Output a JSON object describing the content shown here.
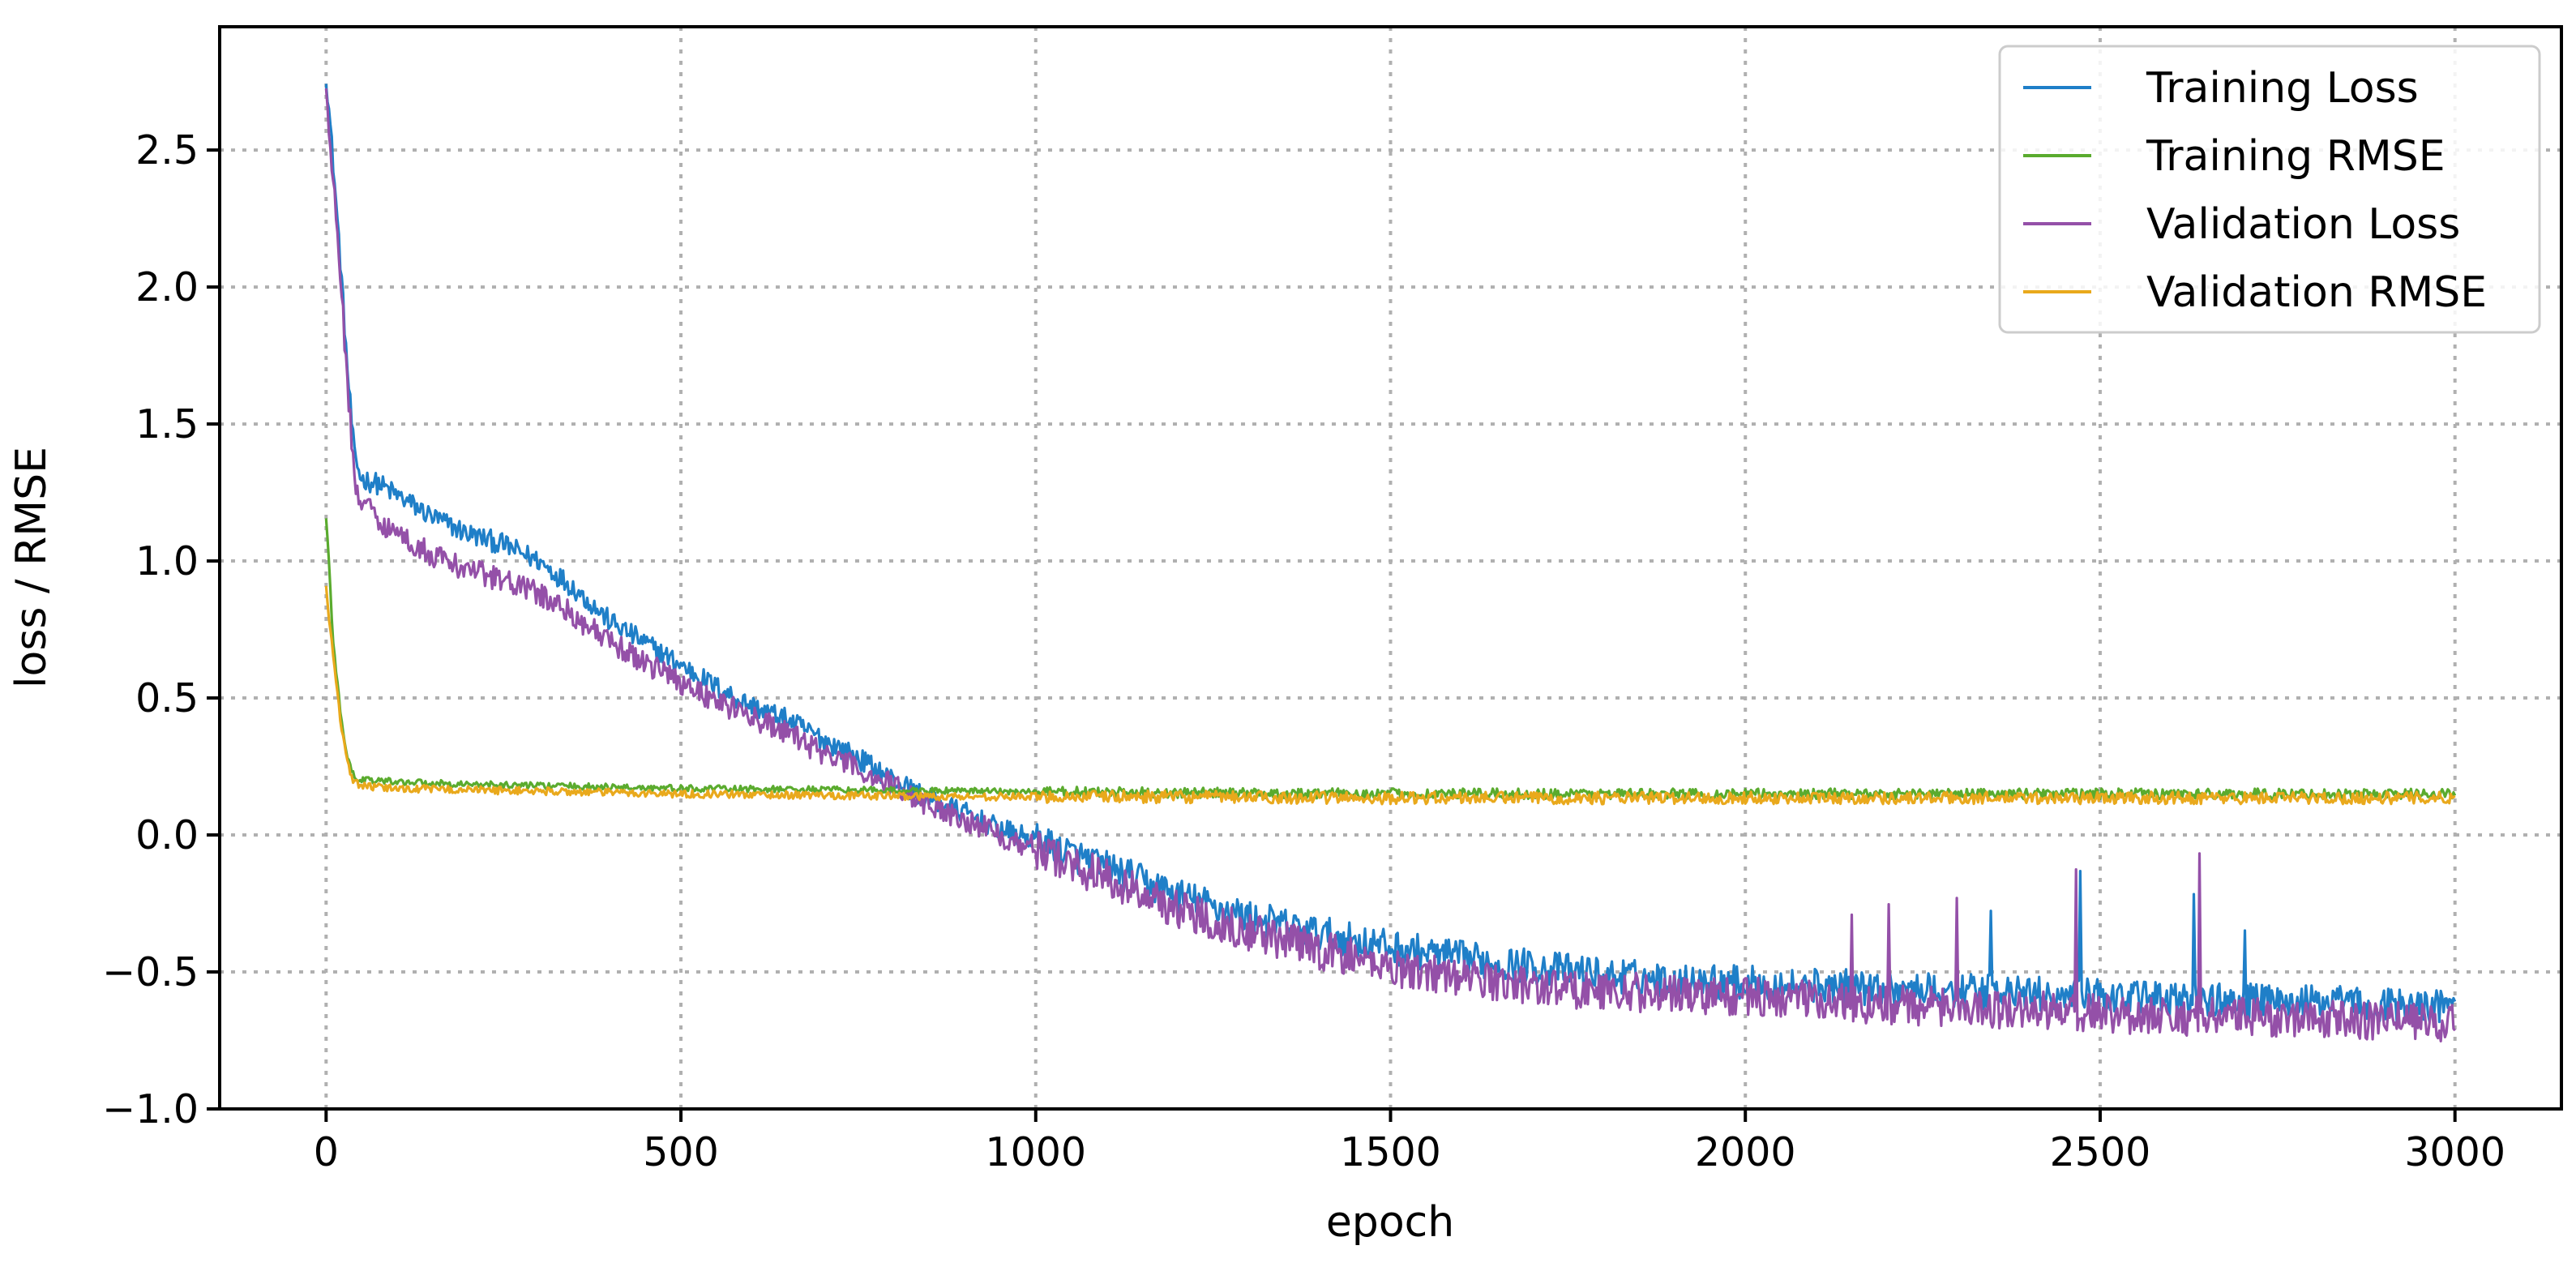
{
  "chart_data": {
    "type": "line",
    "title": "",
    "xlabel": "epoch",
    "ylabel": "loss / RMSE",
    "xlim": [
      -150,
      3150
    ],
    "ylim": [
      -1.0,
      2.95
    ],
    "xticks": [
      0,
      500,
      1000,
      1500,
      2000,
      2500,
      3000
    ],
    "xtick_labels": [
      "0",
      "500",
      "1000",
      "1500",
      "2000",
      "2500",
      "3000"
    ],
    "yticks": [
      -1.0,
      -0.5,
      0.0,
      0.5,
      1.0,
      1.5,
      2.0,
      2.5
    ],
    "ytick_labels": [
      "−1.0",
      "−0.5",
      "0.0",
      "0.5",
      "1.0",
      "1.5",
      "2.0",
      "2.5"
    ],
    "grid": true,
    "legend_position": "top-right",
    "series": [
      {
        "name": "Training Loss",
        "color": "#1f7fc8",
        "x": [
          0,
          10,
          20,
          30,
          40,
          50,
          75,
          100,
          150,
          200,
          250,
          300,
          350,
          400,
          450,
          500,
          550,
          600,
          650,
          700,
          750,
          800,
          850,
          900,
          950,
          1000,
          1100,
          1200,
          1300,
          1400,
          1500,
          1600,
          1700,
          1800,
          1900,
          2000,
          2200,
          2400,
          2600,
          2800,
          3000
        ],
        "y": [
          2.78,
          2.45,
          2.1,
          1.7,
          1.38,
          1.3,
          1.28,
          1.24,
          1.16,
          1.1,
          1.06,
          1.0,
          0.9,
          0.78,
          0.7,
          0.62,
          0.54,
          0.47,
          0.42,
          0.35,
          0.28,
          0.2,
          0.13,
          0.08,
          0.02,
          -0.02,
          -0.12,
          -0.22,
          -0.3,
          -0.36,
          -0.41,
          -0.45,
          -0.48,
          -0.51,
          -0.53,
          -0.54,
          -0.56,
          -0.58,
          -0.6,
          -0.61,
          -0.63
        ],
        "noise": 0.04
      },
      {
        "name": "Training RMSE",
        "color": "#5aab2e",
        "x": [
          0,
          5,
          10,
          20,
          30,
          40,
          60,
          100,
          200,
          300,
          400,
          500,
          700,
          900,
          1100,
          1500,
          2000,
          2500,
          3000
        ],
        "y": [
          1.15,
          0.95,
          0.7,
          0.45,
          0.28,
          0.21,
          0.2,
          0.195,
          0.185,
          0.18,
          0.175,
          0.17,
          0.165,
          0.16,
          0.155,
          0.15,
          0.15,
          0.15,
          0.15
        ],
        "noise": 0.012
      },
      {
        "name": "Validation Loss",
        "color": "#9450a8",
        "x": [
          0,
          10,
          20,
          30,
          40,
          50,
          75,
          100,
          150,
          200,
          250,
          300,
          350,
          400,
          450,
          500,
          550,
          600,
          650,
          700,
          750,
          800,
          850,
          900,
          950,
          1000,
          1100,
          1200,
          1300,
          1400,
          1500,
          1600,
          1700,
          1800,
          1900,
          2000,
          2200,
          2400,
          2600,
          2800,
          3000
        ],
        "y": [
          2.7,
          2.4,
          2.05,
          1.65,
          1.3,
          1.22,
          1.15,
          1.1,
          1.02,
          0.97,
          0.93,
          0.88,
          0.8,
          0.7,
          0.63,
          0.56,
          0.49,
          0.43,
          0.37,
          0.3,
          0.24,
          0.18,
          0.11,
          0.06,
          0.0,
          -0.05,
          -0.16,
          -0.27,
          -0.35,
          -0.42,
          -0.48,
          -0.52,
          -0.55,
          -0.57,
          -0.58,
          -0.59,
          -0.62,
          -0.64,
          -0.66,
          -0.67,
          -0.69
        ],
        "noise": 0.045
      },
      {
        "name": "Validation RMSE",
        "color": "#e9a91c",
        "x": [
          0,
          10,
          20,
          30,
          40,
          60,
          100,
          200,
          300,
          400,
          500,
          700,
          900,
          1100,
          1500,
          2000,
          2500,
          3000
        ],
        "y": [
          0.9,
          0.65,
          0.42,
          0.26,
          0.19,
          0.175,
          0.17,
          0.165,
          0.16,
          0.155,
          0.15,
          0.145,
          0.14,
          0.14,
          0.135,
          0.135,
          0.135,
          0.135
        ],
        "noise": 0.014
      }
    ]
  }
}
